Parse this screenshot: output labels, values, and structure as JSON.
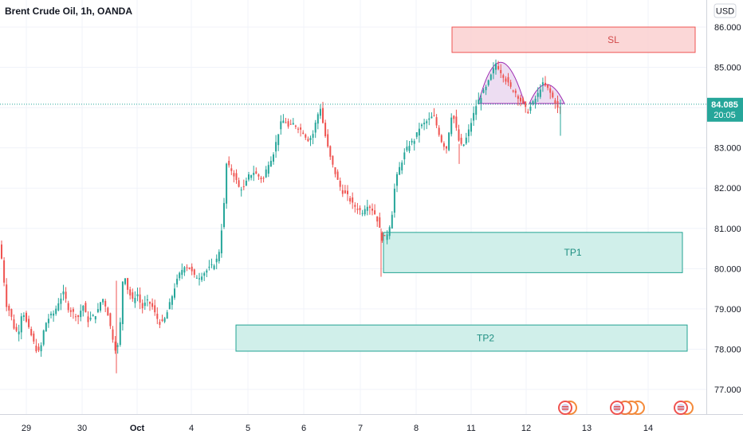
{
  "header": {
    "title": "Brent Crude Oil, 1h, OANDA",
    "currency": "USD"
  },
  "price_badge": {
    "price": "84.085",
    "countdown": "20:05"
  },
  "colors": {
    "up": "#26a69a",
    "down": "#ef5350",
    "sl_fill": "#fbd3d3",
    "sl_border": "#ef5350",
    "tp_fill": "#cdeee9",
    "tp_border": "#22a393",
    "pattern_fill": "#e9d4ef",
    "pattern_border": "#9c27b0",
    "badge": "#26a69a"
  },
  "chart_data": {
    "type": "candlestick",
    "title": "Brent Crude Oil, 1h, OANDA",
    "ylim": [
      76.5,
      86.5
    ],
    "y_ticks": [
      "77.000",
      "78.000",
      "79.000",
      "80.000",
      "81.000",
      "82.000",
      "83.000",
      "84.000",
      "85.000",
      "86.000"
    ],
    "x_ticks": [
      "29",
      "30",
      "Oct",
      "4",
      "5",
      "6",
      "7",
      "8",
      "11",
      "12",
      "13",
      "14"
    ],
    "last_price": 84.085,
    "price_path": [
      {
        "x": 0,
        "y": 80.6
      },
      {
        "x": 4,
        "y": 79.9
      },
      {
        "x": 8,
        "y": 79.1
      },
      {
        "x": 13,
        "y": 78.9
      },
      {
        "x": 18,
        "y": 78.5
      },
      {
        "x": 23,
        "y": 78.4
      },
      {
        "x": 28,
        "y": 79.0
      },
      {
        "x": 34,
        "y": 78.6
      },
      {
        "x": 40,
        "y": 78.3
      },
      {
        "x": 45,
        "y": 78.0
      },
      {
        "x": 50,
        "y": 77.9
      },
      {
        "x": 56,
        "y": 78.6
      },
      {
        "x": 62,
        "y": 78.8
      },
      {
        "x": 68,
        "y": 78.9
      },
      {
        "x": 74,
        "y": 79.2
      },
      {
        "x": 80,
        "y": 79.4
      },
      {
        "x": 86,
        "y": 79.0
      },
      {
        "x": 92,
        "y": 78.9
      },
      {
        "x": 98,
        "y": 78.8
      },
      {
        "x": 104,
        "y": 79.1
      },
      {
        "x": 110,
        "y": 78.7
      },
      {
        "x": 116,
        "y": 78.8
      },
      {
        "x": 122,
        "y": 78.9
      },
      {
        "x": 128,
        "y": 79.3
      },
      {
        "x": 134,
        "y": 79.0
      },
      {
        "x": 140,
        "y": 78.4
      },
      {
        "x": 146,
        "y": 77.9
      },
      {
        "x": 150,
        "y": 78.3
      },
      {
        "x": 153,
        "y": 79.6
      },
      {
        "x": 156,
        "y": 79.9
      },
      {
        "x": 160,
        "y": 79.5
      },
      {
        "x": 166,
        "y": 79.2
      },
      {
        "x": 172,
        "y": 79.4
      },
      {
        "x": 178,
        "y": 79.0
      },
      {
        "x": 184,
        "y": 79.2
      },
      {
        "x": 190,
        "y": 79.1
      },
      {
        "x": 196,
        "y": 78.8
      },
      {
        "x": 202,
        "y": 78.6
      },
      {
        "x": 208,
        "y": 78.8
      },
      {
        "x": 214,
        "y": 79.2
      },
      {
        "x": 220,
        "y": 79.6
      },
      {
        "x": 226,
        "y": 79.9
      },
      {
        "x": 232,
        "y": 80.1
      },
      {
        "x": 238,
        "y": 80.0
      },
      {
        "x": 244,
        "y": 79.8
      },
      {
        "x": 250,
        "y": 79.8
      },
      {
        "x": 256,
        "y": 79.9
      },
      {
        "x": 262,
        "y": 80.0
      },
      {
        "x": 268,
        "y": 80.1
      },
      {
        "x": 274,
        "y": 80.3
      },
      {
        "x": 278,
        "y": 81.0
      },
      {
        "x": 281,
        "y": 81.6
      },
      {
        "x": 284,
        "y": 82.6
      },
      {
        "x": 288,
        "y": 82.5
      },
      {
        "x": 292,
        "y": 82.4
      },
      {
        "x": 296,
        "y": 82.2
      },
      {
        "x": 300,
        "y": 82.0
      },
      {
        "x": 306,
        "y": 82.0
      },
      {
        "x": 312,
        "y": 82.3
      },
      {
        "x": 318,
        "y": 82.4
      },
      {
        "x": 324,
        "y": 82.3
      },
      {
        "x": 330,
        "y": 82.2
      },
      {
        "x": 336,
        "y": 82.6
      },
      {
        "x": 342,
        "y": 82.8
      },
      {
        "x": 347,
        "y": 83.2
      },
      {
        "x": 352,
        "y": 83.6
      },
      {
        "x": 357,
        "y": 83.7
      },
      {
        "x": 362,
        "y": 83.5
      },
      {
        "x": 368,
        "y": 83.6
      },
      {
        "x": 374,
        "y": 83.5
      },
      {
        "x": 380,
        "y": 83.4
      },
      {
        "x": 386,
        "y": 83.2
      },
      {
        "x": 392,
        "y": 83.3
      },
      {
        "x": 398,
        "y": 83.8
      },
      {
        "x": 402,
        "y": 84.0
      },
      {
        "x": 406,
        "y": 83.5
      },
      {
        "x": 410,
        "y": 83.1
      },
      {
        "x": 415,
        "y": 82.7
      },
      {
        "x": 420,
        "y": 82.4
      },
      {
        "x": 425,
        "y": 82.1
      },
      {
        "x": 430,
        "y": 81.9
      },
      {
        "x": 436,
        "y": 81.8
      },
      {
        "x": 442,
        "y": 81.6
      },
      {
        "x": 448,
        "y": 81.5
      },
      {
        "x": 454,
        "y": 81.4
      },
      {
        "x": 460,
        "y": 81.6
      },
      {
        "x": 466,
        "y": 81.5
      },
      {
        "x": 472,
        "y": 81.3
      },
      {
        "x": 476,
        "y": 81.0
      },
      {
        "x": 480,
        "y": 80.7
      },
      {
        "x": 484,
        "y": 80.8
      },
      {
        "x": 488,
        "y": 81.0
      },
      {
        "x": 492,
        "y": 81.4
      },
      {
        "x": 495,
        "y": 82.0
      },
      {
        "x": 499,
        "y": 82.4
      },
      {
        "x": 503,
        "y": 82.6
      },
      {
        "x": 508,
        "y": 82.9
      },
      {
        "x": 514,
        "y": 83.1
      },
      {
        "x": 520,
        "y": 83.2
      },
      {
        "x": 526,
        "y": 83.5
      },
      {
        "x": 532,
        "y": 83.6
      },
      {
        "x": 538,
        "y": 83.7
      },
      {
        "x": 544,
        "y": 83.8
      },
      {
        "x": 550,
        "y": 83.4
      },
      {
        "x": 555,
        "y": 83.1
      },
      {
        "x": 560,
        "y": 83.0
      },
      {
        "x": 566,
        "y": 83.8
      },
      {
        "x": 570,
        "y": 83.7
      },
      {
        "x": 575,
        "y": 83.2
      },
      {
        "x": 580,
        "y": 83.0
      },
      {
        "x": 586,
        "y": 83.3
      },
      {
        "x": 592,
        "y": 83.7
      },
      {
        "x": 598,
        "y": 84.1
      },
      {
        "x": 604,
        "y": 84.3
      },
      {
        "x": 610,
        "y": 84.5
      },
      {
        "x": 616,
        "y": 84.8
      },
      {
        "x": 622,
        "y": 85.1
      },
      {
        "x": 628,
        "y": 84.9
      },
      {
        "x": 634,
        "y": 84.7
      },
      {
        "x": 640,
        "y": 84.5
      },
      {
        "x": 646,
        "y": 84.4
      },
      {
        "x": 652,
        "y": 84.2
      },
      {
        "x": 658,
        "y": 84.0
      },
      {
        "x": 662,
        "y": 83.9
      },
      {
        "x": 668,
        "y": 84.1
      },
      {
        "x": 674,
        "y": 84.3
      },
      {
        "x": 680,
        "y": 84.6
      },
      {
        "x": 686,
        "y": 84.5
      },
      {
        "x": 692,
        "y": 84.3
      },
      {
        "x": 697,
        "y": 84.1
      },
      {
        "x": 701,
        "y": 83.9
      },
      {
        "x": 705,
        "y": 84.085
      }
    ]
  },
  "zones": [
    {
      "label": "SL",
      "top": 86.0,
      "bottom": 85.37
    },
    {
      "label": "TP1",
      "top": 80.9,
      "bottom": 79.9
    },
    {
      "label": "TP2",
      "top": 78.6,
      "bottom": 77.95
    }
  ]
}
